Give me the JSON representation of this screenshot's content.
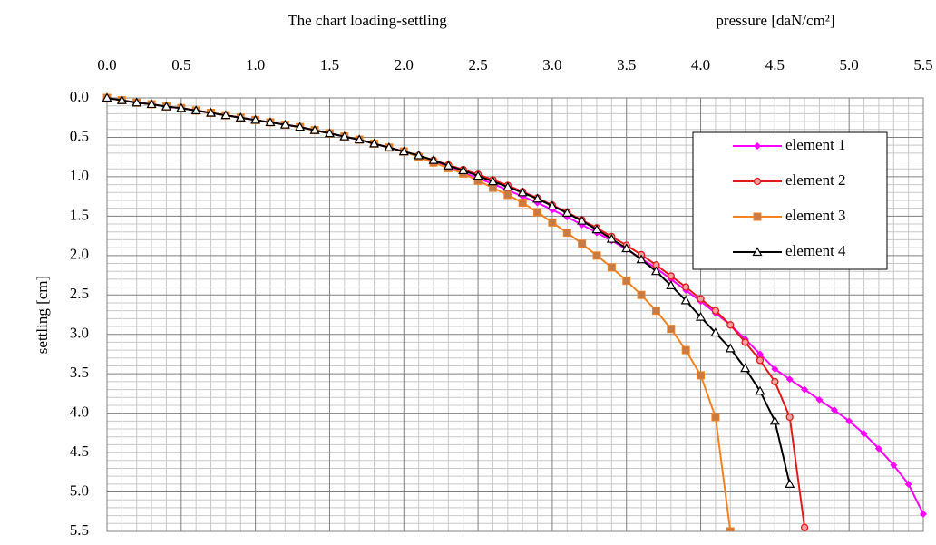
{
  "chart_data": {
    "type": "line",
    "title": "The chart loading-settling",
    "subtitle": "pressure [daN/cm²]",
    "y_label": "settling [cm]",
    "x": [
      0.0,
      0.1,
      0.2,
      0.3,
      0.4,
      0.5,
      0.6,
      0.7,
      0.8,
      0.9,
      1.0,
      1.1,
      1.2,
      1.3,
      1.4,
      1.5,
      1.6,
      1.7,
      1.8,
      1.9,
      2.0,
      2.1,
      2.2,
      2.3,
      2.4,
      2.5,
      2.6,
      2.7,
      2.8,
      2.9,
      3.0,
      3.1,
      3.2,
      3.3,
      3.4,
      3.5,
      3.6,
      3.7,
      3.8,
      3.9,
      4.0,
      4.1,
      4.2,
      4.3,
      4.4,
      4.5,
      4.6,
      4.7,
      4.8,
      4.9,
      5.0,
      5.1,
      5.2,
      5.3,
      5.4,
      5.5
    ],
    "series": [
      {
        "name": "element 1",
        "color": "#ff00ff",
        "marker": "diamond",
        "values": [
          0,
          0.03,
          0.06,
          0.08,
          0.11,
          0.13,
          0.16,
          0.19,
          0.22,
          0.25,
          0.28,
          0.31,
          0.34,
          0.37,
          0.41,
          0.45,
          0.49,
          0.53,
          0.58,
          0.63,
          0.68,
          0.74,
          0.81,
          0.88,
          0.95,
          1.02,
          1.09,
          1.17,
          1.25,
          1.33,
          1.42,
          1.51,
          1.61,
          1.71,
          1.81,
          1.92,
          2.04,
          2.16,
          2.3,
          2.44,
          2.58,
          2.73,
          2.88,
          3.06,
          3.25,
          3.44,
          3.57,
          3.7,
          3.83,
          3.96,
          4.1,
          4.26,
          4.45,
          4.66,
          4.9,
          5.28
        ]
      },
      {
        "name": "element 2",
        "color": "#e31a1c",
        "marker": "circle",
        "values": [
          0,
          0.03,
          0.06,
          0.08,
          0.11,
          0.13,
          0.16,
          0.19,
          0.22,
          0.25,
          0.28,
          0.31,
          0.34,
          0.37,
          0.41,
          0.45,
          0.49,
          0.53,
          0.58,
          0.63,
          0.68,
          0.73,
          0.79,
          0.85,
          0.91,
          0.97,
          1.04,
          1.11,
          1.19,
          1.27,
          1.36,
          1.45,
          1.55,
          1.65,
          1.76,
          1.87,
          1.99,
          2.12,
          2.26,
          2.4,
          2.55,
          2.7,
          2.88,
          3.1,
          3.33,
          3.6,
          4.05,
          5.45,
          null,
          null,
          null,
          null,
          null,
          null,
          null,
          null
        ]
      },
      {
        "name": "element 3",
        "color": "#f58220",
        "marker": "square",
        "values": [
          0,
          0.03,
          0.06,
          0.08,
          0.11,
          0.13,
          0.16,
          0.19,
          0.22,
          0.25,
          0.28,
          0.31,
          0.34,
          0.37,
          0.41,
          0.45,
          0.49,
          0.53,
          0.58,
          0.63,
          0.68,
          0.75,
          0.82,
          0.89,
          0.96,
          1.05,
          1.14,
          1.23,
          1.33,
          1.45,
          1.58,
          1.71,
          1.85,
          2.0,
          2.15,
          2.32,
          2.5,
          2.7,
          2.93,
          3.2,
          3.52,
          4.05,
          5.5,
          null,
          null,
          null,
          null,
          null,
          null,
          null,
          null,
          null,
          null,
          null,
          null,
          null
        ]
      },
      {
        "name": "element 4",
        "color": "#000000",
        "marker": "triangle",
        "values": [
          0,
          0.03,
          0.06,
          0.08,
          0.11,
          0.13,
          0.16,
          0.19,
          0.22,
          0.25,
          0.28,
          0.31,
          0.34,
          0.37,
          0.41,
          0.45,
          0.49,
          0.53,
          0.58,
          0.63,
          0.68,
          0.73,
          0.79,
          0.86,
          0.92,
          0.99,
          1.06,
          1.13,
          1.2,
          1.28,
          1.37,
          1.46,
          1.56,
          1.67,
          1.79,
          1.91,
          2.05,
          2.2,
          2.38,
          2.57,
          2.78,
          2.98,
          3.18,
          3.43,
          3.72,
          4.1,
          4.9,
          null,
          null,
          null,
          null,
          null,
          null,
          null,
          null,
          null
        ]
      }
    ],
    "xlim": [
      0,
      5.5
    ],
    "xticks": [
      {
        "value": 0,
        "label": "0.0"
      },
      0.5,
      {
        "value": 1,
        "label": "1.0"
      },
      1.5,
      {
        "value": 2,
        "label": "2.0"
      },
      2.5,
      {
        "value": 3,
        "label": "3.0"
      },
      3.5,
      {
        "value": 4,
        "label": "4.0"
      },
      4.5,
      {
        "value": 5,
        "label": "5.0"
      },
      5.5
    ],
    "ylim": [
      0,
      5.5
    ],
    "yticks": [
      {
        "value": 0,
        "label": "0.0"
      },
      0.5,
      {
        "value": 1,
        "label": "1.0"
      },
      1.5,
      {
        "value": 2,
        "label": "2.0"
      },
      2.5,
      {
        "value": 3,
        "label": "3.0"
      },
      3.5,
      {
        "value": 4,
        "label": "4.0"
      },
      4.5,
      {
        "value": 5,
        "label": "5.0"
      },
      5.5
    ],
    "y_inverted": true,
    "x_axis_position": "top",
    "grid": true,
    "minor_grid": true,
    "legend": "upper right"
  }
}
